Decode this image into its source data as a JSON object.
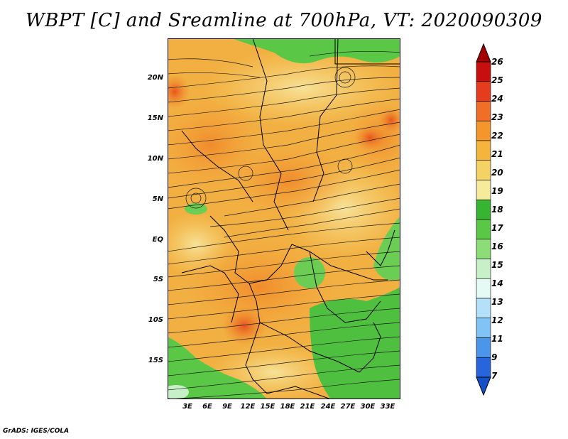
{
  "title": "WBPT [C] and Sreamline at 700hPa, VT: 2020090309",
  "footer": "GrADS: IGES/COLA",
  "map": {
    "lat_labels": [
      "20N",
      "15N",
      "10N",
      "5N",
      "EQ",
      "5S",
      "10S",
      "15S"
    ],
    "lon_labels": [
      "3E",
      "6E",
      "9E",
      "12E",
      "15E",
      "18E",
      "21E",
      "24E",
      "27E",
      "30E",
      "33E"
    ]
  },
  "colorbar": {
    "labels": [
      "26",
      "25",
      "24",
      "23",
      "22",
      "21",
      "20",
      "19",
      "18",
      "17",
      "16",
      "15",
      "14",
      "13",
      "12",
      "11",
      "9",
      "7"
    ],
    "colors": [
      "#a50000",
      "#c80f0f",
      "#e63c1e",
      "#f06e28",
      "#f5962d",
      "#f5b43c",
      "#f5d264",
      "#f5eb9b",
      "#37b432",
      "#5ac846",
      "#8cdc78",
      "#c8f0c8",
      "#e6faf5",
      "#b4e1fa",
      "#82c3f5",
      "#4b96eb",
      "#2864dc",
      "#1450c8"
    ]
  }
}
